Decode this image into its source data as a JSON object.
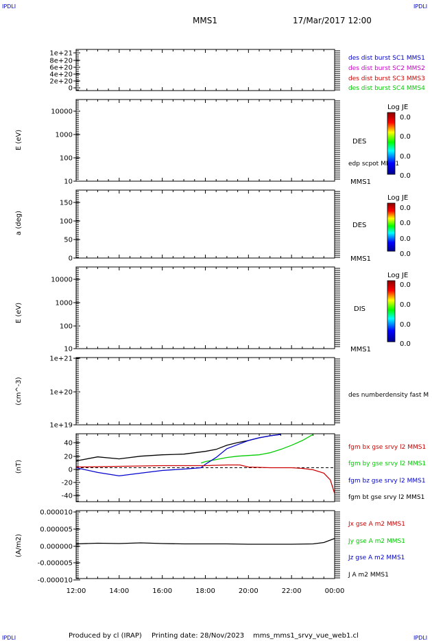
{
  "corner_label": "IPDLI",
  "header": {
    "spacecraft": "MMS1",
    "date": "17/Mar/2017 12:00"
  },
  "time_axis": {
    "ticks": [
      "12:00",
      "14:00",
      "16:00",
      "18:00",
      "20:00",
      "22:00",
      "00:00"
    ],
    "start_hour": 12,
    "end_hour": 24
  },
  "footer": {
    "produced": "Produced by cl (IRAP)",
    "printing": "Printing date: 28/Nov/2023",
    "filename": "mms_mms1_srvy_vue_web1.cl"
  },
  "colorbars": [
    {
      "title": "Log JE",
      "values": [
        "0.0",
        "0.0",
        "0.0",
        "0.0"
      ]
    },
    {
      "title": "Log JE",
      "values": [
        "0.0",
        "0.0",
        "0.0",
        "0.0"
      ]
    },
    {
      "title": "Log JE",
      "values": [
        "0.0",
        "0.0",
        "0.0",
        "0.0"
      ]
    }
  ],
  "chart_data": [
    {
      "type": "line",
      "yticks": [
        "1e+21",
        "8e+20",
        "6e+20",
        "4e+20",
        "2e+20",
        "0"
      ],
      "ylim": [
        0,
        1e+21
      ],
      "legend": [
        {
          "text": "des dist burst SC1 MMS1",
          "color": "#0000cc"
        },
        {
          "text": "des dist burst SC2 MMS2",
          "color": "#cc00cc"
        },
        {
          "text": "des dist burst SC3 MMS3",
          "color": "#cc0000"
        },
        {
          "text": "des dist burst SC4 MMS4",
          "color": "#00cc00"
        }
      ],
      "reference_line": 0
    },
    {
      "type": "heatmap",
      "ylabel": "E (eV)",
      "scale": "log",
      "yticks": [
        "10000",
        "1000",
        "100",
        "10"
      ],
      "label": "DES",
      "overlay": "edp scpot MMS1",
      "sc": "MMS1"
    },
    {
      "type": "heatmap",
      "ylabel": "a (deg)",
      "yticks": [
        "150",
        "100",
        "50",
        "0"
      ],
      "ylim": [
        0,
        180
      ],
      "label": "DES",
      "sc": "MMS1"
    },
    {
      "type": "heatmap",
      "ylabel": "E (eV)",
      "scale": "log",
      "yticks": [
        "10000",
        "1000",
        "100",
        "10"
      ],
      "label": "DIS",
      "sc": "MMS1"
    },
    {
      "type": "line",
      "ylabel": "(cm^-3)",
      "scale": "log",
      "yticks": [
        "1e+21",
        "1e+20",
        "1e+19"
      ],
      "legend": [
        {
          "text": "des numberdensity fast M",
          "color": "#000000"
        }
      ]
    },
    {
      "type": "line",
      "ylabel": "(nT)",
      "yticks": [
        "40",
        "20",
        "0",
        "-20",
        "-40"
      ],
      "ylim": [
        -50,
        50
      ],
      "reference_line": 0,
      "legend": [
        {
          "text": "fgm bx gse srvy l2 MMS1",
          "color": "#cc0000"
        },
        {
          "text": "fgm by gse srvy l2 MMS1",
          "color": "#00cc00"
        },
        {
          "text": "fgm bz gse srvy l2 MMS1",
          "color": "#0000cc"
        },
        {
          "text": "fgm bt gse srvy l2 MMS1",
          "color": "#000000"
        }
      ],
      "series": [
        {
          "name": "fgm bt gse srvy l2 MMS1",
          "color": "#000000",
          "x": [
            12,
            13,
            14,
            15,
            16,
            17,
            18,
            18.5,
            19,
            19.5,
            20,
            20.5,
            21,
            21.5
          ],
          "y": [
            10,
            16,
            13,
            17,
            19,
            20,
            24,
            27,
            33,
            37,
            40,
            44,
            47,
            49
          ]
        },
        {
          "name": "fgm by gse srvy l2 MMS1",
          "color": "#00cc00",
          "x": [
            17.8,
            18,
            18.5,
            19,
            19.5,
            20,
            20.5,
            21,
            21.5,
            22,
            22.5,
            23
          ],
          "y": [
            7,
            9,
            12,
            15,
            17,
            18,
            19,
            22,
            27,
            33,
            40,
            49
          ]
        },
        {
          "name": "fgm bz gse srvy l2 MMS1",
          "color": "#0000cc",
          "x": [
            12,
            13,
            14,
            15,
            16,
            17,
            17.8,
            18,
            18.5,
            19,
            19.5,
            20,
            20.5,
            21,
            21.5
          ],
          "y": [
            0,
            -7,
            -12,
            -8,
            -4,
            -2,
            0,
            5,
            15,
            28,
            34,
            40,
            44,
            47,
            49
          ]
        },
        {
          "name": "fgm bx gse srvy l2 MMS1",
          "color": "#cc0000",
          "x": [
            12,
            14,
            16,
            18,
            19,
            19.6,
            20,
            21,
            22,
            22.5,
            23,
            23.5,
            23.8,
            24
          ],
          "y": [
            1,
            2,
            3,
            3,
            4,
            4,
            1,
            0,
            0,
            -1,
            -3,
            -8,
            -18,
            -38
          ]
        }
      ]
    },
    {
      "type": "line",
      "ylabel": "(A/m2)",
      "yticks": [
        "0.000010",
        "0.000005",
        "0.000000",
        "-0.000005",
        "-0.000010"
      ],
      "ylim": [
        -1e-05,
        1e-05
      ],
      "legend": [
        {
          "text": "Jx gse A m2 MMS1",
          "color": "#cc0000"
        },
        {
          "text": "Jy gse A m2 MMS1",
          "color": "#00cc00"
        },
        {
          "text": "Jz gse A m2 MMS1",
          "color": "#0000cc"
        },
        {
          "text": "J A m2 MMS1",
          "color": "#000000"
        }
      ],
      "series": [
        {
          "name": "J A m2 MMS1",
          "color": "#000000",
          "x": [
            12,
            13,
            14,
            15,
            16,
            17,
            18,
            19,
            20,
            21,
            22,
            23,
            23.5,
            24
          ],
          "y": [
            2e-07,
            4e-07,
            3e-07,
            5e-07,
            3e-07,
            2e-07,
            2e-07,
            2e-07,
            1e-07,
            1e-07,
            1e-07,
            2e-07,
            6e-07,
            1.8e-06
          ]
        }
      ]
    }
  ]
}
